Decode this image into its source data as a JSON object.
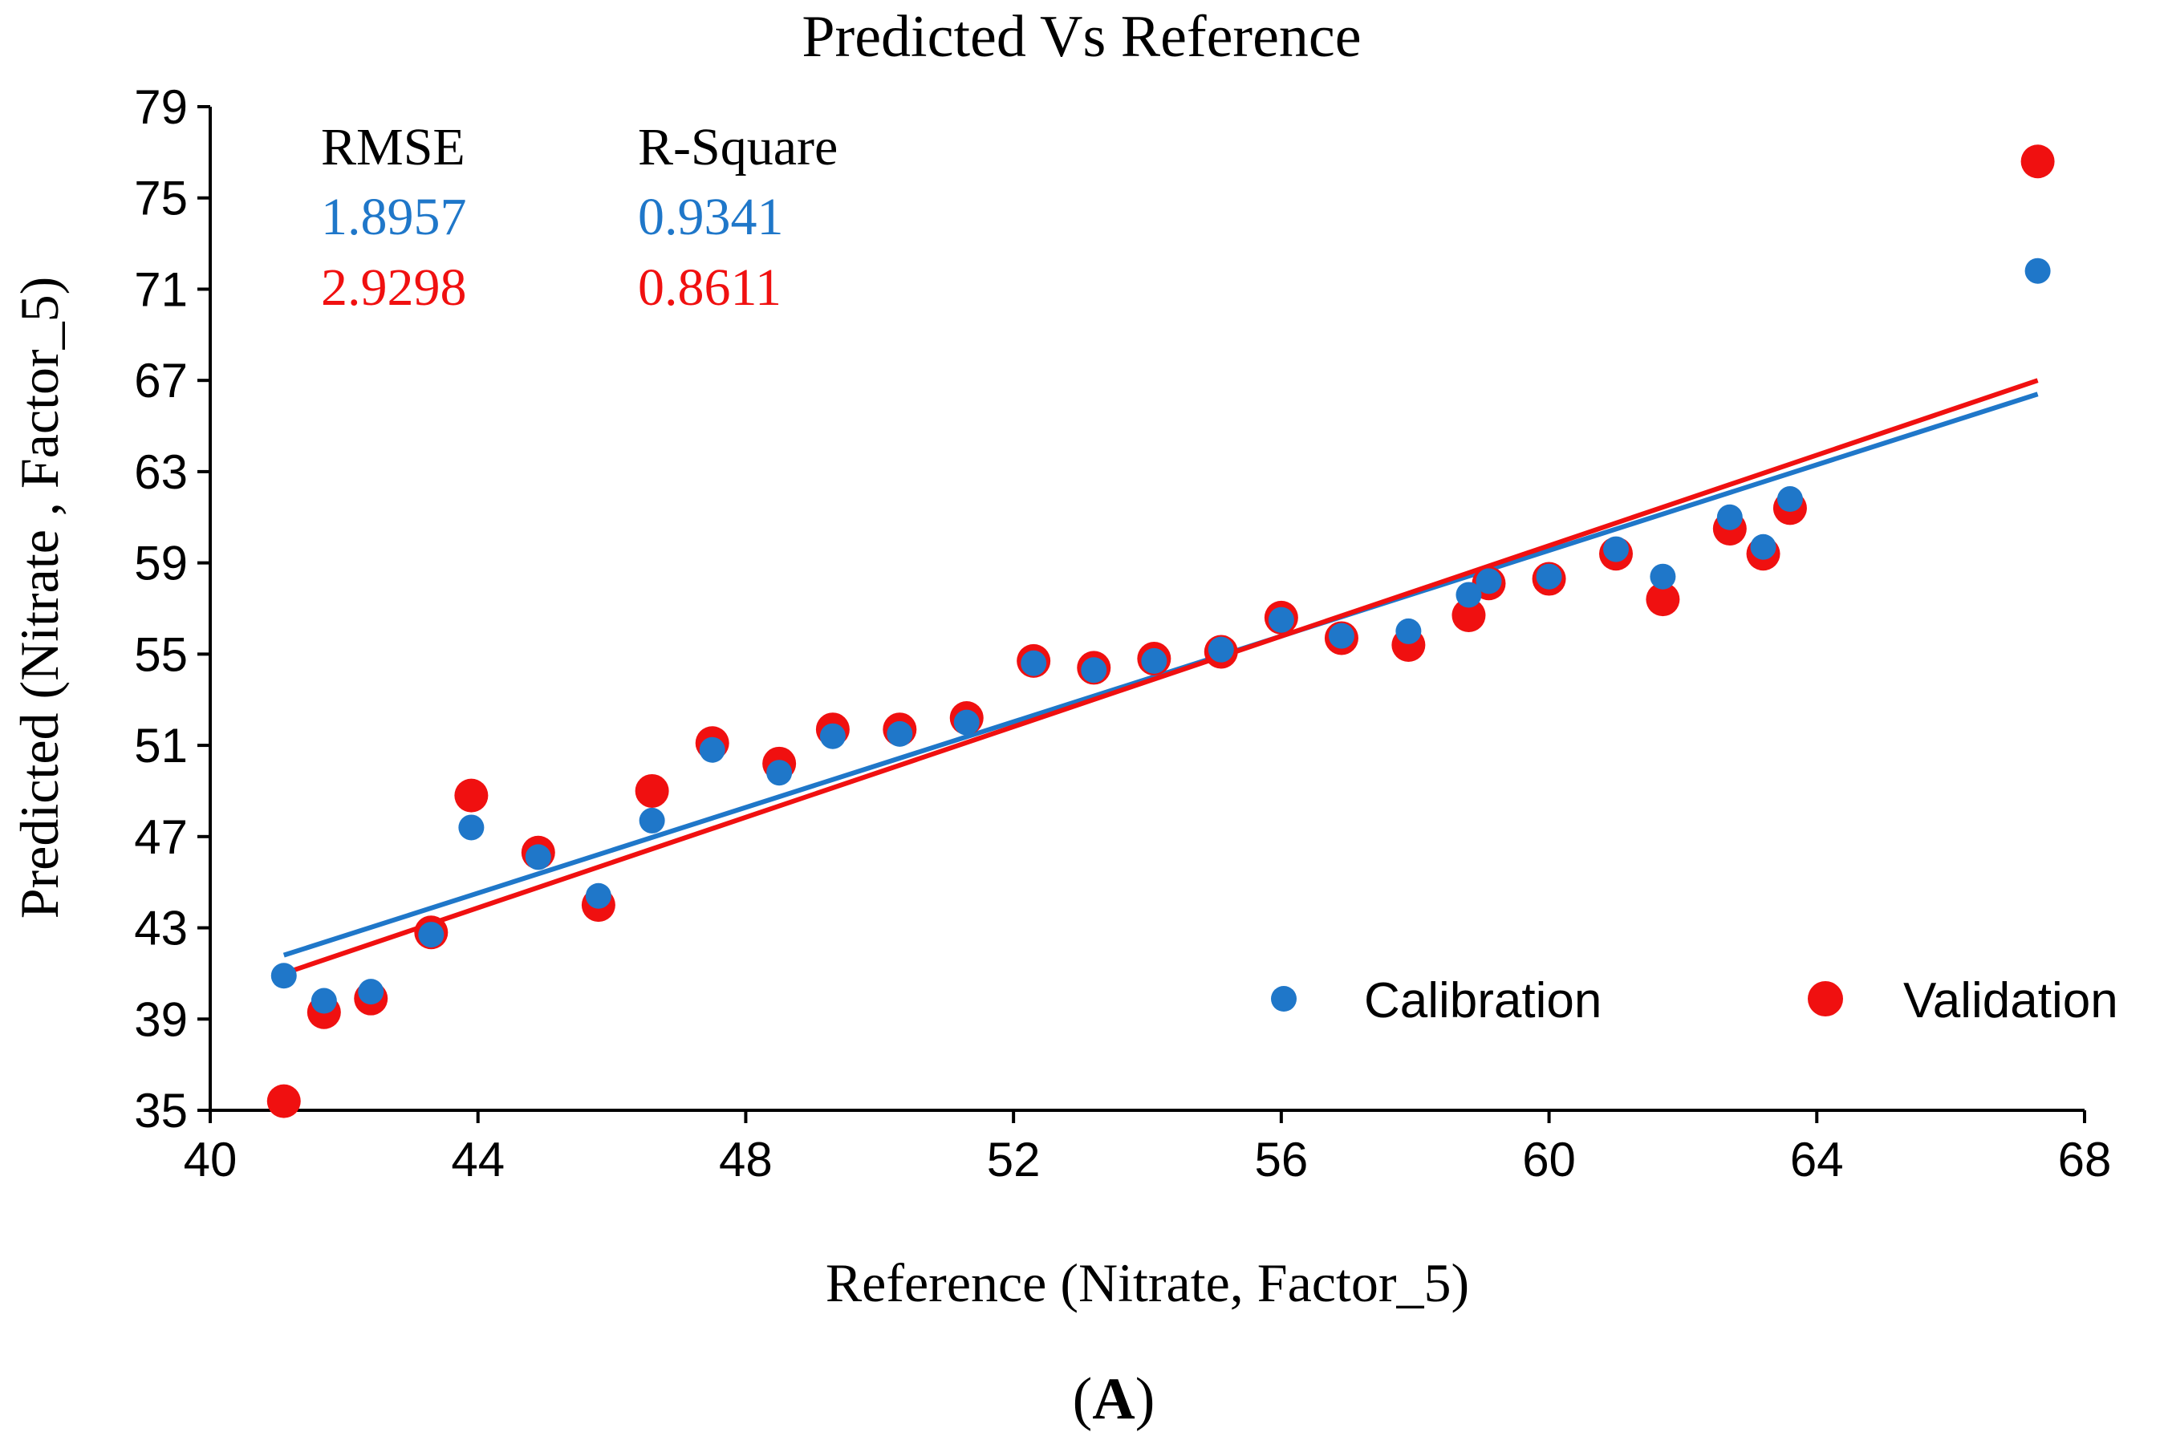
{
  "chart_data": {
    "type": "scatter",
    "title": "Predicted Vs Reference",
    "xlabel": "Reference (Nitrate, Factor_5)",
    "ylabel": "Predicted (Nitrate , Factor_5)",
    "panel_label_open": "(",
    "panel_label_letter": "A",
    "panel_label_close": ")",
    "xlim": [
      40,
      68
    ],
    "ylim": [
      35,
      79
    ],
    "x_ticks": [
      40,
      44,
      48,
      52,
      56,
      60,
      64,
      68
    ],
    "y_ticks": [
      35,
      39,
      43,
      47,
      51,
      55,
      59,
      63,
      67,
      71,
      75,
      79
    ],
    "grid": false,
    "legend_position": "bottom-right",
    "stats_table": {
      "header_rmse": "RMSE",
      "header_rsquare": "R-Square",
      "calibration_rmse": "1.8957",
      "calibration_rsquare": "0.9341",
      "validation_rmse": "2.9298",
      "validation_rsquare": "0.8611"
    },
    "series": [
      {
        "name": "Calibration",
        "color": "#1f77c9",
        "x": [
          41.1,
          41.7,
          42.4,
          43.3,
          43.9,
          44.9,
          45.8,
          46.6,
          47.5,
          48.5,
          49.3,
          50.3,
          51.3,
          52.3,
          53.2,
          54.1,
          55.1,
          56.0,
          56.9,
          57.9,
          58.8,
          59.1,
          60.0,
          61.0,
          61.7,
          62.7,
          63.2,
          63.6,
          67.3
        ],
        "y": [
          40.9,
          39.8,
          40.2,
          42.7,
          47.4,
          46.1,
          44.4,
          47.7,
          50.8,
          49.8,
          51.4,
          51.5,
          52.0,
          54.6,
          54.3,
          54.7,
          55.2,
          56.5,
          55.8,
          56.0,
          57.6,
          58.2,
          58.4,
          59.6,
          58.4,
          61.0,
          59.7,
          61.8,
          71.8
        ]
      },
      {
        "name": "Validation",
        "color": "#f01010",
        "x": [
          41.1,
          41.7,
          42.4,
          43.3,
          43.9,
          44.9,
          45.8,
          46.6,
          47.5,
          48.5,
          49.3,
          50.3,
          51.3,
          52.3,
          53.2,
          54.1,
          55.1,
          56.0,
          56.9,
          57.9,
          58.8,
          59.1,
          60.0,
          61.0,
          61.7,
          62.7,
          63.2,
          63.6,
          67.3
        ],
        "y": [
          35.4,
          39.3,
          39.9,
          42.8,
          48.8,
          46.3,
          44.0,
          49.0,
          51.1,
          50.2,
          51.7,
          51.7,
          52.2,
          54.7,
          54.4,
          54.8,
          55.1,
          56.6,
          55.7,
          55.4,
          56.7,
          58.1,
          58.3,
          59.4,
          57.4,
          60.5,
          59.4,
          61.4,
          76.6
        ]
      }
    ],
    "fit_lines": [
      {
        "name": "Calibration fit",
        "color": "#1f77c9",
        "x": [
          41.1,
          67.3
        ],
        "y": [
          41.8,
          66.4
        ]
      },
      {
        "name": "Validation fit",
        "color": "#f01010",
        "x": [
          41.1,
          67.3
        ],
        "y": [
          41.0,
          67.0
        ]
      }
    ]
  }
}
